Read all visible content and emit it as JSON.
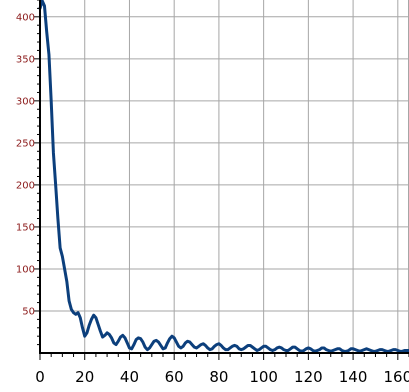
{
  "chart_data": {
    "type": "line",
    "title": "",
    "xlabel": "",
    "ylabel": "",
    "xlim": [
      0,
      165
    ],
    "ylim": [
      0,
      420
    ],
    "grid": true,
    "x_ticks": [
      "0",
      "20",
      "40",
      "60",
      "80",
      "100",
      "120",
      "140",
      "160"
    ],
    "y_ticks": [
      "50",
      "100",
      "150",
      "200",
      "250",
      "300",
      "350",
      "400"
    ],
    "colors": {
      "line": "#0c3f7c",
      "grid": "#a6a6a6",
      "ytick_label": "#8b1a1a",
      "axis": "#000000"
    },
    "series": [
      {
        "name": "",
        "points": [
          [
            0,
            410
          ],
          [
            1,
            419
          ],
          [
            2,
            413
          ],
          [
            3,
            382
          ],
          [
            4,
            355
          ],
          [
            5,
            300
          ],
          [
            6,
            238
          ],
          [
            7,
            200
          ],
          [
            8,
            160
          ],
          [
            9,
            125
          ],
          [
            10,
            115
          ],
          [
            11,
            100
          ],
          [
            12,
            85
          ],
          [
            13,
            62
          ],
          [
            14,
            52
          ],
          [
            15,
            48
          ],
          [
            16,
            46
          ],
          [
            17,
            48
          ],
          [
            18,
            42
          ],
          [
            19,
            30
          ],
          [
            20,
            20
          ],
          [
            21,
            24
          ],
          [
            22,
            33
          ],
          [
            23,
            40
          ],
          [
            24,
            45
          ],
          [
            25,
            42
          ],
          [
            26,
            34
          ],
          [
            27,
            26
          ],
          [
            28,
            19
          ],
          [
            29,
            21
          ],
          [
            30,
            24
          ],
          [
            31,
            22
          ],
          [
            32,
            18
          ],
          [
            33,
            12
          ],
          [
            34,
            10
          ],
          [
            35,
            14
          ],
          [
            36,
            19
          ],
          [
            37,
            21
          ],
          [
            38,
            18
          ],
          [
            39,
            12
          ],
          [
            40,
            6
          ],
          [
            41,
            5
          ],
          [
            42,
            10
          ],
          [
            43,
            16
          ],
          [
            44,
            18
          ],
          [
            45,
            17
          ],
          [
            46,
            13
          ],
          [
            47,
            7
          ],
          [
            48,
            4
          ],
          [
            49,
            6
          ],
          [
            50,
            10
          ],
          [
            51,
            14
          ],
          [
            52,
            15
          ],
          [
            53,
            13
          ],
          [
            54,
            9
          ],
          [
            55,
            5
          ],
          [
            56,
            6
          ],
          [
            57,
            12
          ],
          [
            58,
            17
          ],
          [
            59,
            20
          ],
          [
            60,
            18
          ],
          [
            61,
            13
          ],
          [
            62,
            8
          ],
          [
            63,
            6
          ],
          [
            64,
            8
          ],
          [
            65,
            12
          ],
          [
            66,
            14
          ],
          [
            67,
            13
          ],
          [
            68,
            10
          ],
          [
            69,
            7
          ],
          [
            70,
            6
          ],
          [
            71,
            8
          ],
          [
            72,
            10
          ],
          [
            73,
            11
          ],
          [
            74,
            9
          ],
          [
            75,
            6
          ],
          [
            76,
            4
          ],
          [
            77,
            5
          ],
          [
            78,
            8
          ],
          [
            79,
            10
          ],
          [
            80,
            11
          ],
          [
            81,
            9
          ],
          [
            82,
            6
          ],
          [
            83,
            4
          ],
          [
            84,
            4
          ],
          [
            85,
            6
          ],
          [
            86,
            8
          ],
          [
            87,
            9
          ],
          [
            88,
            8
          ],
          [
            89,
            5
          ],
          [
            90,
            4
          ],
          [
            91,
            5
          ],
          [
            92,
            7
          ],
          [
            93,
            9
          ],
          [
            94,
            9
          ],
          [
            95,
            7
          ],
          [
            96,
            5
          ],
          [
            97,
            3
          ],
          [
            98,
            4
          ],
          [
            99,
            6
          ],
          [
            100,
            8
          ],
          [
            101,
            8
          ],
          [
            102,
            6
          ],
          [
            103,
            4
          ],
          [
            104,
            3
          ],
          [
            105,
            4
          ],
          [
            106,
            6
          ],
          [
            107,
            7
          ],
          [
            108,
            6
          ],
          [
            109,
            4
          ],
          [
            110,
            3
          ],
          [
            111,
            3
          ],
          [
            112,
            5
          ],
          [
            113,
            7
          ],
          [
            114,
            7
          ],
          [
            115,
            5
          ],
          [
            116,
            3
          ],
          [
            117,
            2
          ],
          [
            118,
            3
          ],
          [
            119,
            5
          ],
          [
            120,
            6
          ],
          [
            121,
            5
          ],
          [
            122,
            3
          ],
          [
            123,
            2
          ],
          [
            124,
            3
          ],
          [
            125,
            4
          ],
          [
            126,
            6
          ],
          [
            127,
            6
          ],
          [
            128,
            4
          ],
          [
            129,
            3
          ],
          [
            130,
            2
          ],
          [
            131,
            3
          ],
          [
            132,
            4
          ],
          [
            133,
            5
          ],
          [
            134,
            5
          ],
          [
            135,
            3
          ],
          [
            136,
            2
          ],
          [
            137,
            2
          ],
          [
            138,
            3
          ],
          [
            139,
            5
          ],
          [
            140,
            5
          ],
          [
            141,
            4
          ],
          [
            142,
            3
          ],
          [
            143,
            2
          ],
          [
            144,
            3
          ],
          [
            145,
            4
          ],
          [
            146,
            5
          ],
          [
            147,
            4
          ],
          [
            148,
            3
          ],
          [
            149,
            2
          ],
          [
            150,
            2
          ],
          [
            151,
            3
          ],
          [
            152,
            4
          ],
          [
            153,
            4
          ],
          [
            154,
            3
          ],
          [
            155,
            2
          ],
          [
            156,
            2
          ],
          [
            157,
            3
          ],
          [
            158,
            4
          ],
          [
            159,
            4
          ],
          [
            160,
            3
          ],
          [
            161,
            2
          ],
          [
            162,
            2
          ],
          [
            163,
            3
          ],
          [
            164,
            3
          ],
          [
            165,
            3
          ]
        ]
      }
    ]
  }
}
